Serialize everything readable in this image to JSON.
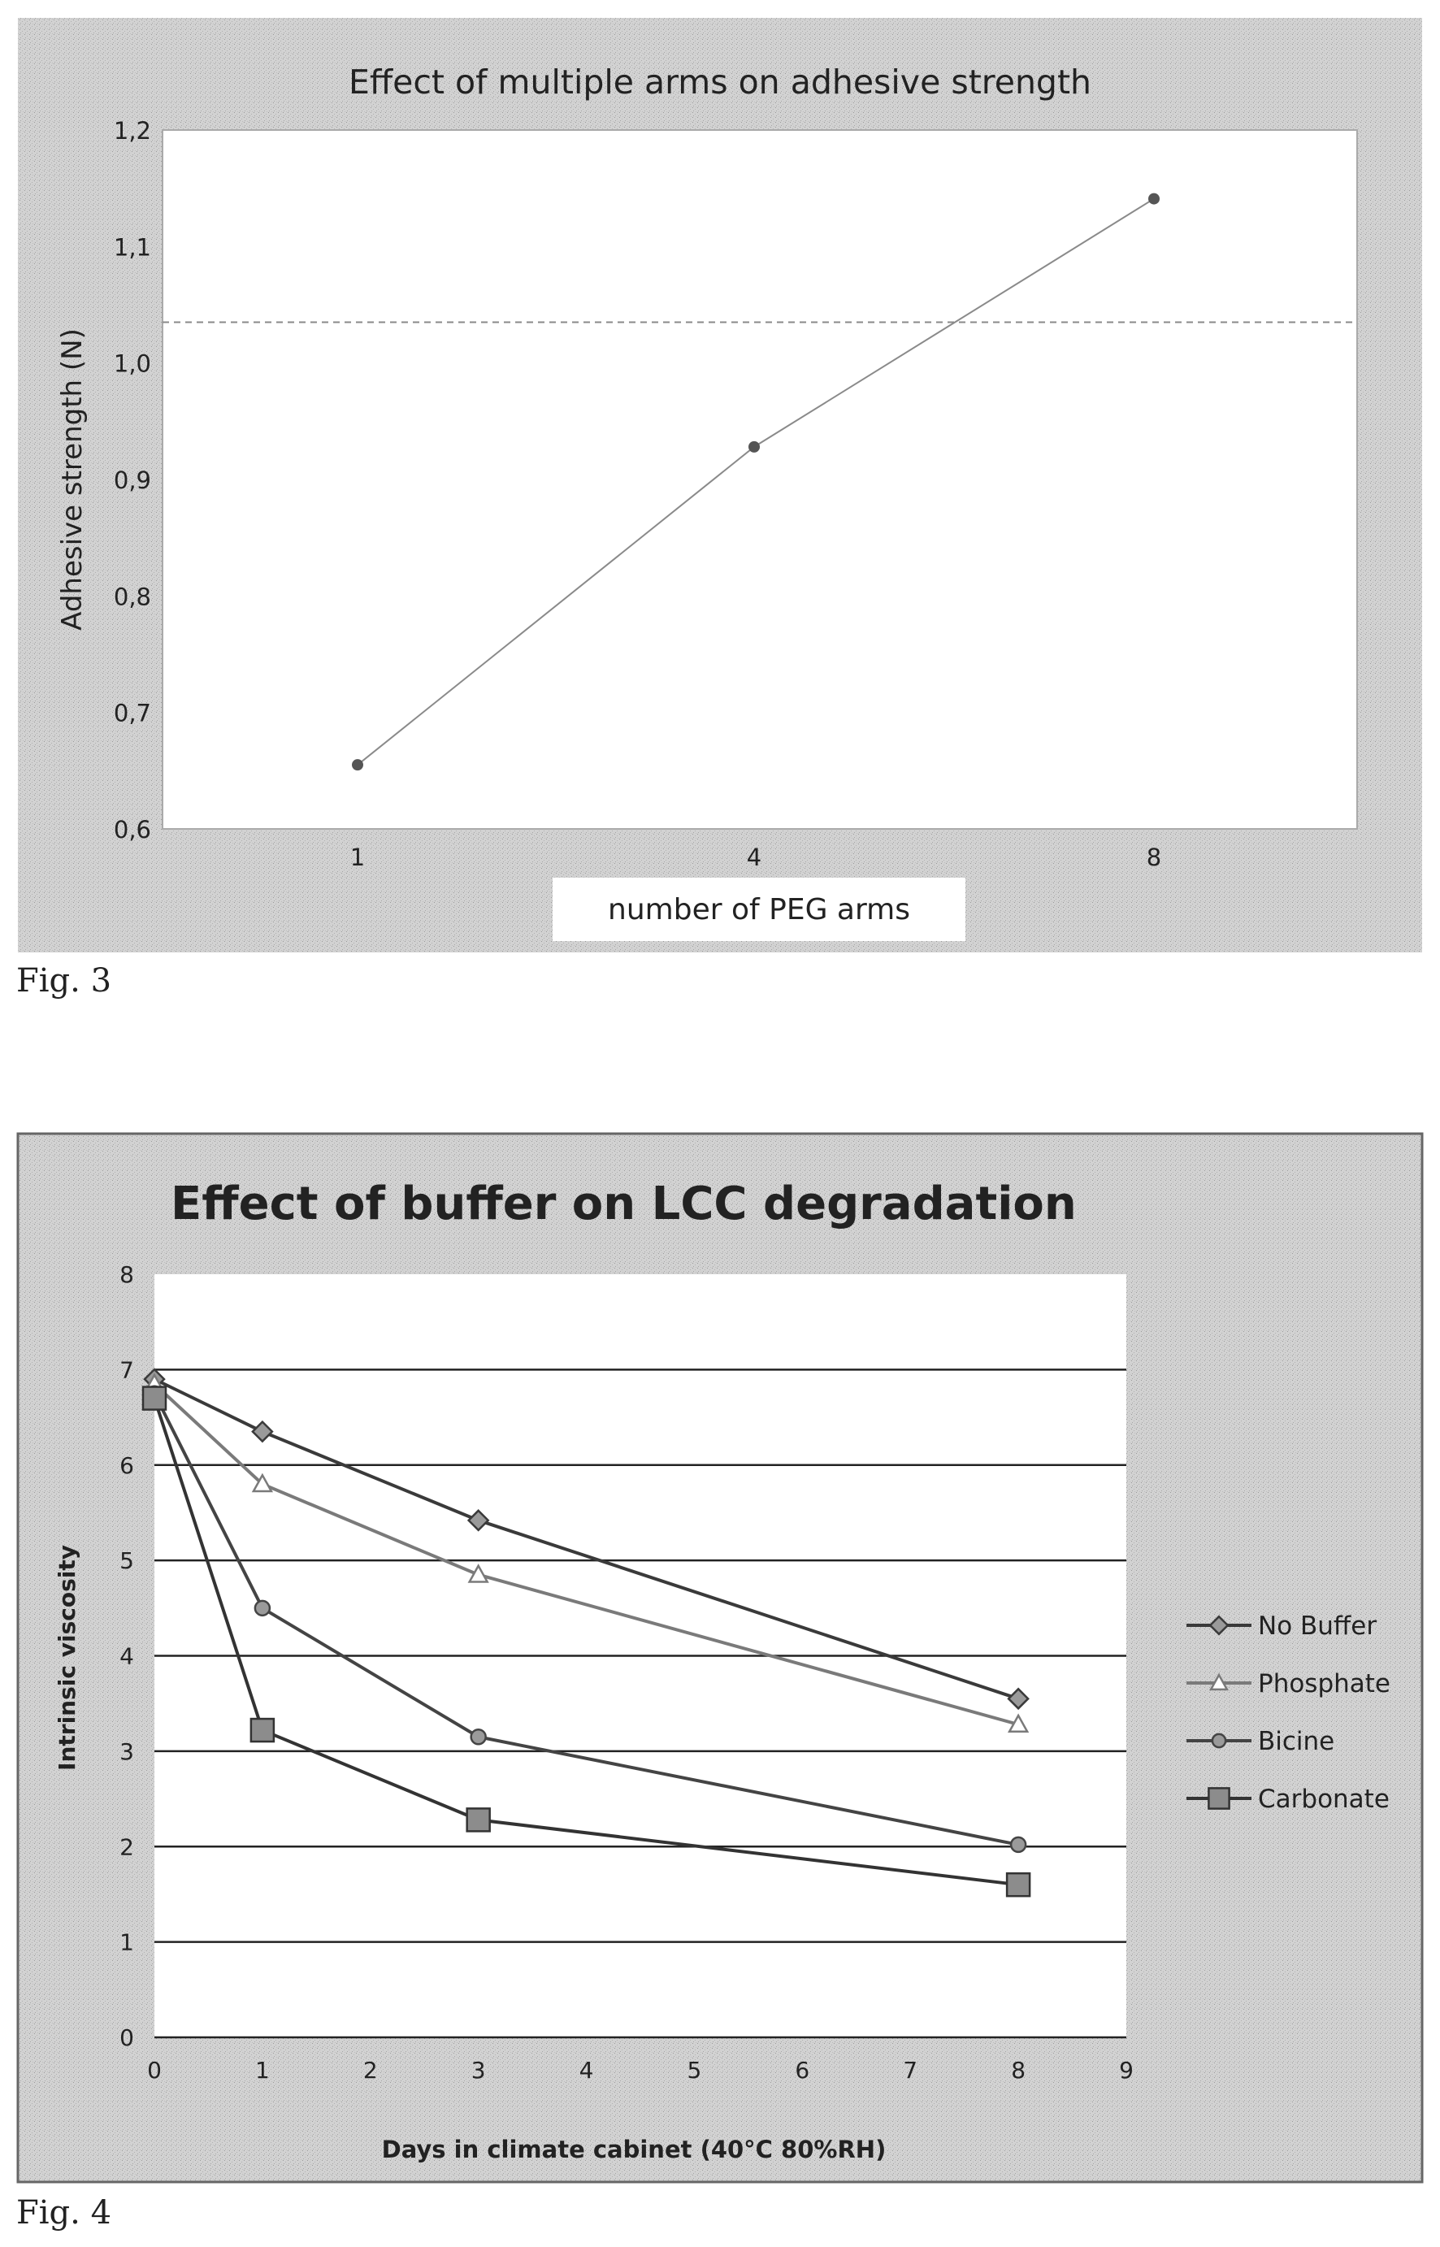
{
  "figures": {
    "fig3_caption": "Fig. 3",
    "fig4_caption": "Fig. 4"
  },
  "chart_data": [
    {
      "type": "line",
      "title": "Effect of multiple arms on adhesive strength",
      "xlabel": "number of PEG arms",
      "ylabel": "Adhesive strength (N)",
      "categories": [
        "1",
        "4",
        "8"
      ],
      "series": [
        {
          "values": [
            0.655,
            0.928,
            1.141
          ],
          "color": "#555555"
        }
      ],
      "reference_line": 1.035,
      "ylim": [
        0.6,
        1.2
      ],
      "yticks": [
        "0,6",
        "0,7",
        "0,8",
        "0,9",
        "1,0",
        "1,1",
        "1,2"
      ],
      "grid": false,
      "legend": "none"
    },
    {
      "type": "line",
      "title": "Effect of buffer on LCC degradation",
      "xlabel": "Days in climate cabinet (40°C 80%RH)",
      "ylabel": "Intrinsic viscosity",
      "x": [
        0,
        1,
        3,
        8
      ],
      "series": [
        {
          "name": "No Buffer",
          "marker": "diamond",
          "values": [
            6.9,
            6.35,
            5.42,
            3.55
          ],
          "color": "#3a3a3a"
        },
        {
          "name": "Phosphate",
          "marker": "triangle",
          "values": [
            6.85,
            5.8,
            4.85,
            3.28
          ],
          "color": "#7a7a7a"
        },
        {
          "name": "Bicine",
          "marker": "circle",
          "values": [
            6.75,
            4.5,
            3.15,
            2.02
          ],
          "color": "#444444"
        },
        {
          "name": "Carbonate",
          "marker": "square",
          "values": [
            6.7,
            3.22,
            2.28,
            1.6
          ],
          "color": "#333333"
        }
      ],
      "xlim": [
        0,
        9
      ],
      "ylim": [
        0,
        8
      ],
      "xticks": [
        "0",
        "1",
        "2",
        "3",
        "4",
        "5",
        "6",
        "7",
        "8",
        "9"
      ],
      "yticks": [
        "0",
        "1",
        "2",
        "3",
        "4",
        "5",
        "6",
        "7",
        "8"
      ],
      "grid": true,
      "legend": "right"
    }
  ]
}
